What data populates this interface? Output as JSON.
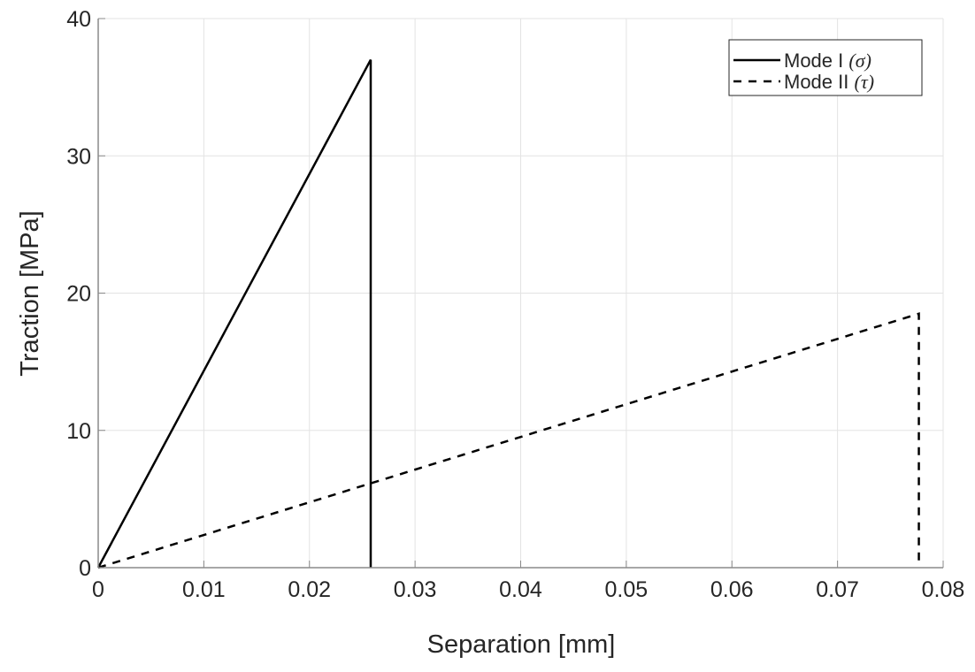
{
  "chart_data": {
    "type": "line",
    "title": "",
    "xlabel": "Separation [mm]",
    "ylabel": "Traction [MPa]",
    "xlim": [
      0,
      0.08
    ],
    "ylim": [
      0,
      40
    ],
    "xticks": [
      "0",
      "0.01",
      "0.02",
      "0.03",
      "0.04",
      "0.05",
      "0.06",
      "0.07",
      "0.08"
    ],
    "yticks": [
      "0",
      "10",
      "20",
      "30",
      "40"
    ],
    "grid": true,
    "legend_position": "top-right",
    "series": [
      {
        "name": "Mode I",
        "symbol": "(σ)",
        "style": "solid",
        "color": "#000000",
        "x": [
          0,
          0.0258,
          0.0258
        ],
        "y": [
          0,
          37.0,
          0
        ]
      },
      {
        "name": "Mode II",
        "symbol": "(τ)",
        "style": "dashed",
        "color": "#000000",
        "x": [
          0,
          0.0777,
          0.0777
        ],
        "y": [
          0,
          18.5,
          0
        ]
      }
    ]
  }
}
